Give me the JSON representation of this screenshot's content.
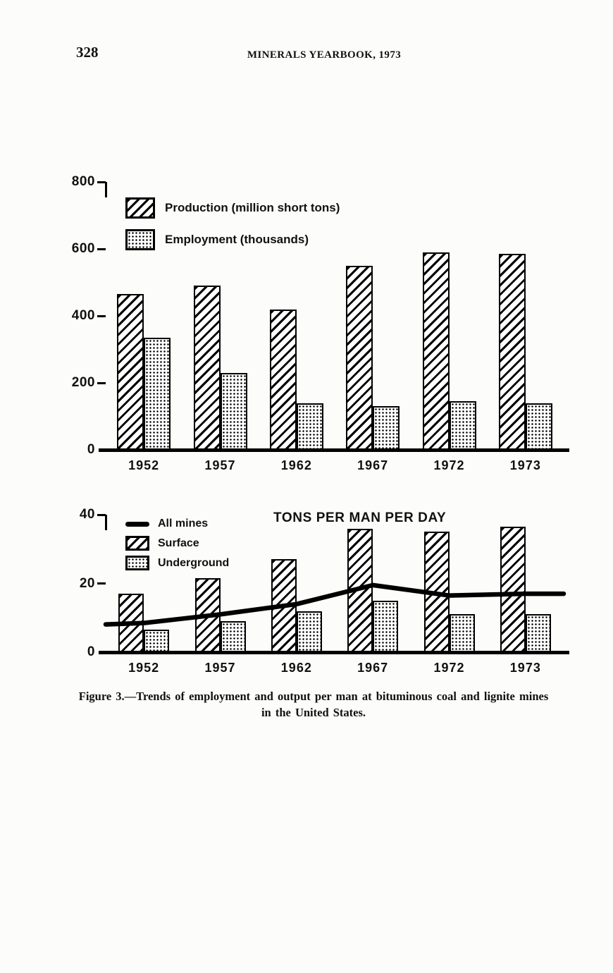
{
  "page": {
    "number": "328",
    "header": "MINERALS YEARBOOK, 1973",
    "caption": "Figure 3.—Trends of employment and output per man at bituminous coal and lignite mines in the United States."
  },
  "chart_data": [
    {
      "type": "bar",
      "title": "",
      "categories": [
        "1952",
        "1957",
        "1962",
        "1967",
        "1972",
        "1973"
      ],
      "series": [
        {
          "name": "Production (million short tons)",
          "pattern": "hatch",
          "values": [
            465,
            490,
            420,
            550,
            590,
            585
          ]
        },
        {
          "name": "Employment (thousands)",
          "pattern": "dots",
          "values": [
            335,
            230,
            140,
            130,
            145,
            140
          ]
        }
      ],
      "ylim": [
        0,
        800
      ],
      "yticks": [
        0,
        200,
        400,
        600,
        800
      ],
      "xlabel": "",
      "ylabel": "",
      "grid": false,
      "legend_position": "top-left-inside"
    },
    {
      "type": "bar+line",
      "title": "TONS PER MAN PER DAY",
      "categories": [
        "1952",
        "1957",
        "1962",
        "1967",
        "1972",
        "1973"
      ],
      "line_series": {
        "name": "All mines",
        "values": [
          8.5,
          11,
          14,
          19.5,
          16.5,
          17
        ]
      },
      "series": [
        {
          "name": "Surface",
          "pattern": "hatch",
          "values": [
            17,
            21.5,
            27,
            36,
            35,
            36.5
          ]
        },
        {
          "name": "Underground",
          "pattern": "dots",
          "values": [
            6.5,
            9,
            12,
            15,
            11,
            11
          ]
        }
      ],
      "ylim": [
        0,
        40
      ],
      "yticks": [
        0,
        20,
        40
      ],
      "xlabel": "",
      "ylabel": "",
      "grid": false,
      "legend_position": "top-left-inside"
    }
  ]
}
